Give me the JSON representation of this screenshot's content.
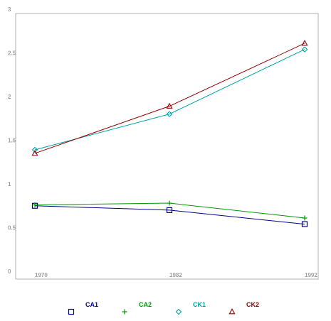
{
  "chart_data": {
    "type": "line",
    "title": "",
    "xlabel": "",
    "ylabel": "",
    "x": [
      "1970",
      "1982",
      "1992"
    ],
    "ylim": [
      0,
      3
    ],
    "yticks": [
      "0",
      "0.5",
      "1",
      "1.5",
      "2",
      "2.5",
      "3"
    ],
    "grid": false,
    "legend_position": "bottom",
    "series": [
      {
        "name": "CA1",
        "values": [
          0.75,
          0.7,
          0.54
        ],
        "color": "#00008b",
        "marker": "square"
      },
      {
        "name": "CA2",
        "values": [
          0.76,
          0.78,
          0.61
        ],
        "color": "#009900",
        "marker": "plus"
      },
      {
        "name": "CK1",
        "values": [
          1.39,
          1.8,
          2.54
        ],
        "color": "#00a3a3",
        "marker": "diamond"
      },
      {
        "name": "CK2",
        "values": [
          1.35,
          1.89,
          2.61
        ],
        "color": "#990000",
        "marker": "triangle"
      }
    ]
  }
}
